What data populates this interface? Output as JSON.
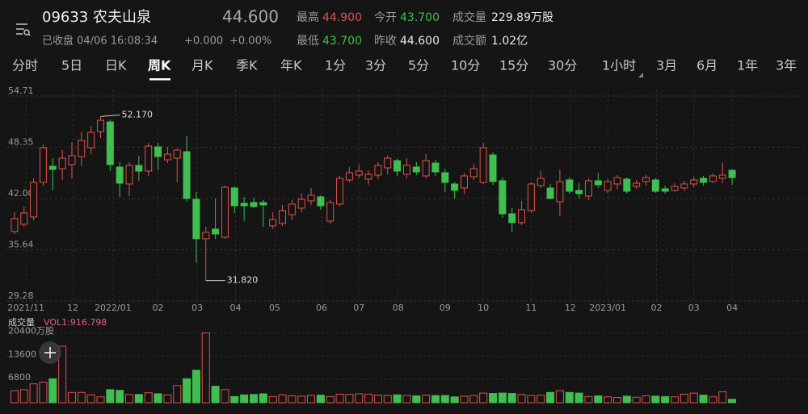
{
  "header": {
    "title": "09633 农夫山泉",
    "price": "44.600",
    "status": "已收盘 04/06 16:08:34",
    "change": "+0.000",
    "change_pct": "+0.00%",
    "stats": [
      {
        "label": "最高",
        "value": "44.900",
        "tone": "up"
      },
      {
        "label": "今开",
        "value": "43.700",
        "tone": "down"
      },
      {
        "label": "成交量",
        "value": "229.89万股",
        "tone": "flat"
      },
      {
        "label": "最低",
        "value": "43.700",
        "tone": "down"
      },
      {
        "label": "昨收",
        "value": "44.600",
        "tone": "flat"
      },
      {
        "label": "成交额",
        "value": "1.02亿",
        "tone": "flat"
      }
    ]
  },
  "tabs": {
    "items": [
      "分时",
      "5日",
      "日K",
      "周K",
      "月K",
      "季K",
      "年K",
      "1分",
      "3分",
      "5分",
      "10分",
      "15分",
      "30分",
      "1小时",
      "3月",
      "6月",
      "1年",
      "3年"
    ],
    "active": 3
  },
  "chart_data": [
    {
      "type": "candlestick",
      "up_color": "#e0524a",
      "down_color": "#3fbf50",
      "max_label": "52.170",
      "min_label": "31.820",
      "open": [
        37.9,
        38.8,
        39.7,
        44.0,
        46.0,
        45.7,
        46.2,
        47.2,
        48.3,
        50.3,
        51.5,
        45.9,
        43.8,
        46.1,
        45.4,
        48.4,
        46.8,
        47.0,
        47.8,
        41.9,
        37.0,
        38.2,
        37.2,
        43.3,
        41.4,
        41.5,
        41.5,
        38.6,
        38.9,
        40.0,
        40.8,
        41.7,
        42.2,
        39.2,
        41.3,
        44.3,
        44.9,
        44.4,
        44.9,
        45.8,
        46.7,
        45.0,
        45.9,
        44.8,
        46.4,
        45.2,
        43.8,
        43.3,
        44.7,
        44.0,
        47.4,
        44.2,
        40.1,
        39.0,
        40.5,
        43.6,
        43.3,
        41.6,
        44.3,
        43.0,
        42.3,
        44.2,
        43.0,
        43.8,
        44.4,
        43.5,
        44.1,
        44.3,
        43.2,
        43.0,
        43.3,
        43.8,
        44.5,
        44.1,
        44.5,
        45.5
      ],
      "high": [
        40.3,
        41.0,
        44.5,
        48.7,
        47.0,
        48.0,
        49.0,
        50.2,
        51.0,
        52.17,
        51.8,
        46.5,
        46.5,
        47.3,
        48.9,
        48.9,
        48.4,
        48.2,
        49.8,
        42.8,
        38.5,
        42.0,
        43.6,
        43.5,
        42.2,
        42.1,
        41.8,
        40.3,
        41.2,
        41.8,
        42.6,
        43.3,
        42.4,
        41.8,
        44.8,
        45.9,
        46.2,
        45.5,
        46.5,
        47.3,
        46.9,
        47.0,
        46.5,
        47.5,
        46.8,
        45.7,
        44.0,
        45.2,
        46.3,
        48.9,
        47.7,
        44.6,
        40.8,
        41.7,
        44.0,
        45.4,
        43.8,
        45.6,
        44.6,
        43.9,
        44.5,
        45.2,
        44.4,
        44.9,
        44.6,
        44.3,
        44.9,
        44.5,
        43.6,
        43.9,
        44.2,
        44.7,
        44.8,
        45.1,
        46.4,
        45.6
      ],
      "low": [
        37.6,
        38.5,
        39.3,
        43.6,
        43.0,
        44.3,
        44.5,
        46.0,
        47.5,
        49.5,
        45.4,
        42.2,
        42.3,
        44.2,
        44.8,
        45.5,
        46.4,
        44.0,
        41.6,
        34.0,
        31.82,
        37.0,
        37.0,
        40.2,
        39.2,
        40.8,
        38.5,
        38.2,
        38.6,
        39.3,
        40.3,
        41.2,
        40.6,
        38.9,
        41.0,
        44.0,
        44.5,
        43.7,
        44.4,
        45.0,
        44.8,
        44.5,
        44.9,
        44.5,
        44.8,
        42.8,
        42.0,
        42.6,
        44.3,
        43.8,
        43.7,
        39.6,
        37.8,
        38.7,
        40.2,
        43.3,
        41.9,
        39.8,
        42.6,
        42.0,
        41.8,
        43.3,
        42.7,
        43.1,
        42.6,
        43.2,
        43.6,
        42.7,
        42.6,
        42.8,
        42.9,
        43.4,
        43.6,
        43.9,
        43.9,
        43.7
      ],
      "close": [
        39.5,
        40.2,
        44.0,
        48.3,
        45.6,
        47.0,
        47.3,
        49.2,
        50.2,
        51.7,
        46.2,
        43.9,
        46.1,
        45.4,
        48.5,
        47.2,
        47.5,
        48.0,
        42.0,
        37.0,
        37.8,
        37.6,
        43.4,
        41.1,
        41.1,
        41.0,
        41.2,
        39.4,
        40.5,
        41.3,
        41.9,
        42.4,
        41.1,
        41.5,
        44.5,
        45.2,
        45.4,
        45.0,
        46.1,
        47.0,
        45.4,
        46.1,
        45.3,
        46.7,
        45.3,
        44.0,
        43.0,
        44.8,
        45.7,
        48.3,
        44.1,
        40.1,
        39.0,
        40.6,
        43.8,
        44.5,
        42.0,
        44.1,
        42.9,
        42.6,
        44.2,
        43.7,
        44.1,
        44.6,
        42.9,
        43.9,
        44.6,
        42.9,
        42.9,
        43.5,
        43.8,
        44.3,
        44.0,
        44.8,
        44.9,
        44.6
      ],
      "xlim": [
        -0.5,
        75.5
      ],
      "xticks": [
        {
          "value": 1.2,
          "label": "2021/11"
        },
        {
          "value": 6.1,
          "label": "12"
        },
        {
          "value": 10.3,
          "label": "2022/01"
        },
        {
          "value": 15.0,
          "label": "02"
        },
        {
          "value": 19.1,
          "label": "03"
        },
        {
          "value": 23.1,
          "label": "04"
        },
        {
          "value": 27.2,
          "label": "05"
        },
        {
          "value": 32.1,
          "label": "06"
        },
        {
          "value": 36.0,
          "label": "07"
        },
        {
          "value": 40.1,
          "label": "08"
        },
        {
          "value": 45.0,
          "label": "09"
        },
        {
          "value": 49.0,
          "label": "10"
        },
        {
          "value": 54.0,
          "label": "11"
        },
        {
          "value": 58.1,
          "label": "12"
        },
        {
          "value": 62.0,
          "label": "2023/01"
        },
        {
          "value": 67.1,
          "label": "02"
        },
        {
          "value": 71.0,
          "label": "03"
        },
        {
          "value": 75.0,
          "label": "04"
        }
      ],
      "ylim": [
        29.28,
        54.71
      ],
      "yticks": [
        54.71,
        48.35,
        {
          "value": 42,
          "label": "42.00"
        },
        35.64,
        29.28
      ],
      "grid": true
    },
    {
      "type": "bar",
      "title": "成交量",
      "subtitle": "VOL1:916.798",
      "values": [
        3500,
        3800,
        5500,
        6000,
        7000,
        16500,
        3000,
        3000,
        2300,
        1700,
        3800,
        3600,
        2400,
        2400,
        2900,
        2600,
        2300,
        5000,
        7000,
        9500,
        20400,
        4800,
        3800,
        1800,
        2300,
        2400,
        2600,
        1800,
        2300,
        2000,
        1900,
        2100,
        2200,
        1800,
        2500,
        2400,
        2600,
        2500,
        2200,
        2100,
        2300,
        2100,
        2000,
        2200,
        2100,
        2100,
        1700,
        1900,
        2100,
        2800,
        2700,
        2800,
        2700,
        2400,
        2100,
        2200,
        3000,
        3500,
        3000,
        2800,
        1800,
        2000,
        1700,
        1500,
        1900,
        1600,
        2000,
        1900,
        1800,
        1700,
        2500,
        2800,
        2200,
        1700,
        3200,
        1000
      ],
      "ylim": [
        0,
        21000
      ],
      "yticks": [
        6800,
        13600,
        {
          "value": 20400,
          "label": "20400万股"
        }
      ],
      "grid": true
    }
  ]
}
